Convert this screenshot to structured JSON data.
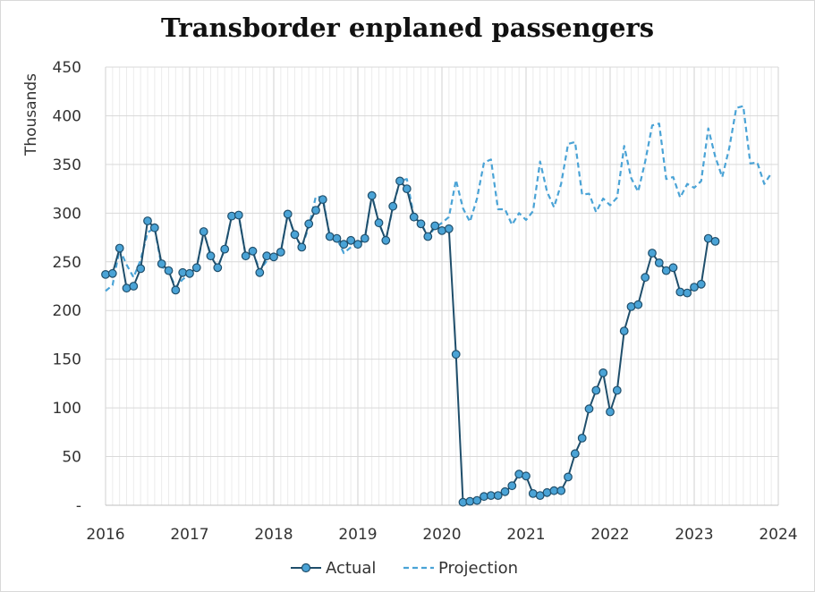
{
  "chart_data": {
    "type": "line",
    "title": "Transborder enplaned passengers",
    "xlabel": "",
    "ylabel": "Thousands",
    "xlim": [
      2016,
      2024
    ],
    "ylim": [
      0,
      450
    ],
    "y_ticks": [
      "-",
      "50",
      "100",
      "150",
      "200",
      "250",
      "300",
      "350",
      "400",
      "450"
    ],
    "x_ticks": [
      "2016",
      "2017",
      "2018",
      "2019",
      "2020",
      "2021",
      "2022",
      "2023",
      "2024"
    ],
    "grid": "vertical-monthly-and-horizontal",
    "legend_position": "bottom",
    "colors": {
      "actual": "#1f4e6b",
      "actual_marker": "#4aa3d6",
      "projection": "#4aa3d6",
      "grid": "#d9d9d9"
    },
    "series": [
      {
        "name": "Actual",
        "style": "solid-with-markers",
        "start": "2016-01",
        "values": [
          237,
          238,
          264,
          223,
          225,
          243,
          292,
          285,
          248,
          241,
          221,
          239,
          238,
          244,
          281,
          256,
          244,
          263,
          297,
          298,
          256,
          261,
          239,
          256,
          255,
          260,
          299,
          278,
          265,
          289,
          303,
          314,
          276,
          274,
          268,
          272,
          268,
          274,
          318,
          290,
          272,
          307,
          333,
          325,
          296,
          289,
          276,
          287,
          282,
          284,
          155,
          3,
          4,
          5,
          9,
          10,
          10,
          14,
          20,
          32,
          30,
          12,
          10,
          13,
          15,
          15,
          29,
          53,
          69,
          99,
          118,
          136,
          96,
          118,
          179,
          204,
          206,
          234,
          259,
          249,
          241,
          244,
          219,
          218,
          224,
          227,
          274,
          271
        ]
      },
      {
        "name": "Projection",
        "style": "dashed",
        "start": "2016-01",
        "values": [
          220,
          226,
          263,
          247,
          234,
          252,
          280,
          285,
          245,
          240,
          224,
          232,
          237,
          244,
          280,
          258,
          244,
          263,
          297,
          298,
          256,
          261,
          241,
          251,
          257,
          260,
          299,
          277,
          265,
          286,
          317,
          316,
          276,
          274,
          259,
          265,
          266,
          274,
          318,
          290,
          272,
          306,
          333,
          335,
          296,
          290,
          276,
          285,
          290,
          296,
          334,
          305,
          291,
          315,
          352,
          355,
          304,
          304,
          288,
          300,
          293,
          302,
          353,
          322,
          306,
          330,
          371,
          373,
          319,
          320,
          301,
          315,
          308,
          316,
          369,
          336,
          322,
          353,
          390,
          392,
          335,
          337,
          316,
          330,
          326,
          333,
          387,
          358,
          337,
          367,
          408,
          410,
          351,
          352,
          330,
          341
        ]
      }
    ]
  }
}
